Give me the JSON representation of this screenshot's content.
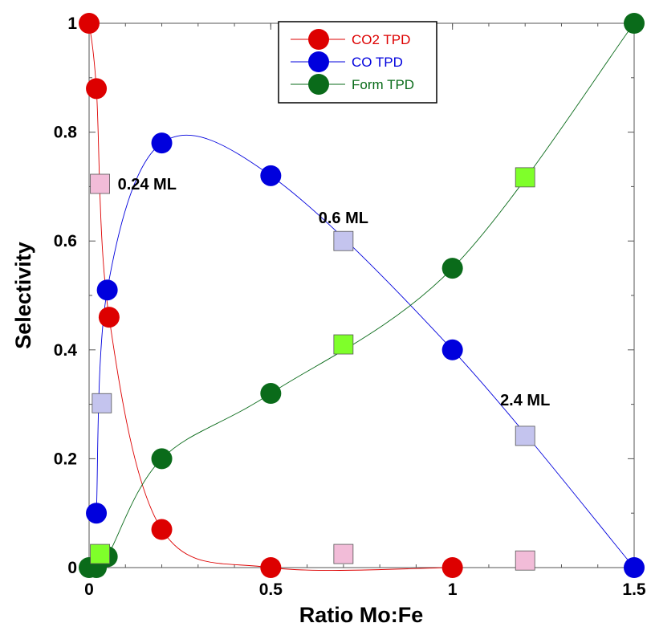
{
  "chart_data": {
    "type": "scatter",
    "xlabel": "Ratio Mo:Fe",
    "ylabel": "Selectivity",
    "xlim": [
      0,
      1.5
    ],
    "ylim": [
      0,
      1
    ],
    "x_ticks": [
      "0",
      "0.5",
      "1",
      "1.5"
    ],
    "y_ticks": [
      "0",
      "0.2",
      "0.4",
      "0.6",
      "0.8",
      "1"
    ],
    "grid": false,
    "legend_placement": "top-center",
    "series": [
      {
        "name": "CO2 TPD",
        "color": "#dd0000",
        "marker": "circle",
        "x": [
          0,
          0.02,
          0.055,
          0.2,
          0.5,
          1.0
        ],
        "y": [
          1.0,
          0.88,
          0.46,
          0.07,
          0.0,
          0.0
        ]
      },
      {
        "name": "CO TPD",
        "color": "#0000dd",
        "marker": "circle",
        "x": [
          0.02,
          0.05,
          0.2,
          0.5,
          1.0,
          1.5
        ],
        "y": [
          0.1,
          0.51,
          0.78,
          0.72,
          0.4,
          0.0
        ]
      },
      {
        "name": "Form TPD",
        "color": "#0a6b1a",
        "marker": "circle",
        "x": [
          0,
          0.02,
          0.05,
          0.2,
          0.5,
          1.0,
          1.5
        ],
        "y": [
          0.0,
          0.0,
          0.02,
          0.2,
          0.32,
          0.55,
          1.0
        ]
      }
    ],
    "square_markers": [
      {
        "coverage": "0.24 ML",
        "CO2": [
          0.03,
          0.705
        ],
        "CO": [
          0.035,
          0.302
        ],
        "Form": [
          0.03,
          0.025
        ]
      },
      {
        "coverage": "0.6 ML",
        "CO2": [
          0.7,
          0.025
        ],
        "CO": [
          0.7,
          0.6
        ],
        "Form": [
          0.7,
          0.41
        ]
      },
      {
        "coverage": "2.4 ML",
        "CO2": [
          1.2,
          0.013
        ],
        "CO": [
          1.2,
          0.242
        ],
        "Form": [
          1.2,
          0.717
        ]
      }
    ],
    "square_colors": {
      "CO2": "#f2bcd8",
      "CO": "#c4c4ee",
      "Form": "#7fff2a"
    }
  }
}
